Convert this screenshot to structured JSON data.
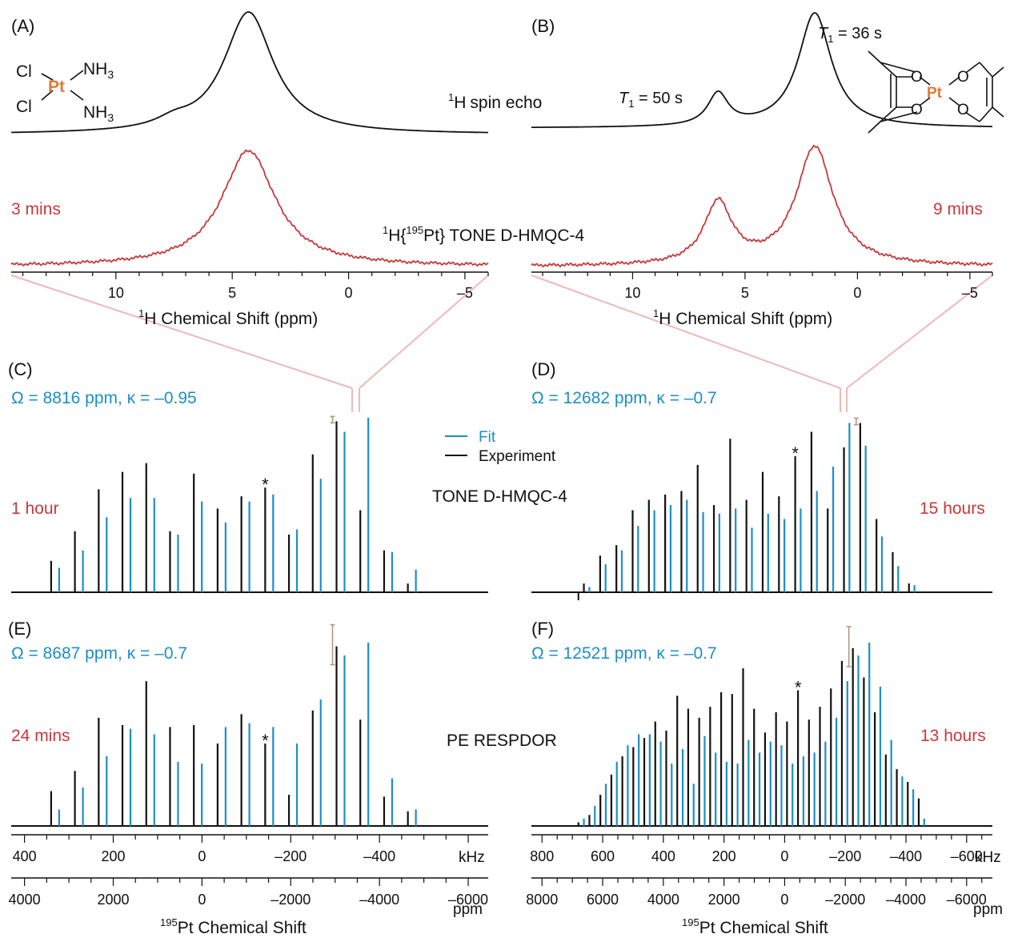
{
  "colors": {
    "experiment": "#111111",
    "fit": "#1b8fc8",
    "label_red": "#c8393b",
    "zoom": "#f0b8b8",
    "errbar": "#b09a80"
  },
  "labels": {
    "A": "(A)",
    "B": "(B)",
    "C": "(C)",
    "D": "(D)",
    "E": "(E)",
    "F": "(F)",
    "spin_echo": "spin echo",
    "spin_echo_sup": "1",
    "spin_echo_nuc": "H",
    "tone_1h_sup": "1",
    "tone_1h_pre": "H{",
    "tone_1h_sup2": "195",
    "tone_1h_post": "Pt} TONE D-HMQC-4",
    "time_A": "3 mins",
    "time_B": "9 mins",
    "time_C": "1 hour",
    "time_D": "15 hours",
    "time_E": "24 mins",
    "time_F": "13 hours",
    "t1_a_sym": "T",
    "t1_a_sub": "1",
    "t1_a_val": " = 50 s",
    "t1_b_sym": "T",
    "t1_b_sub": "1",
    "t1_b_val": " = 36 s",
    "omega_C": "Ω = 8816 ppm, κ =  –0.95",
    "omega_D": "Ω = 12682 ppm, κ = –0.7",
    "omega_E": "Ω = 8687 ppm, κ =  –0.7",
    "omega_F": "Ω = 12521 ppm, κ = –0.7",
    "legend_fit": "Fit",
    "legend_exp": "Experiment",
    "tone": "TONE D-HMQC-4",
    "respdor": "PE RESPDOR",
    "star": "*",
    "unit_khz": "kHz",
    "unit_ppm": "ppm",
    "h_axis_sup": "1",
    "h_axis": "H Chemical Shift (ppm)",
    "pt_axis_sup": "195",
    "pt_axis": "Pt Chemical Shift",
    "mol_a": {
      "cl1": "Cl",
      "cl2": "Cl",
      "pt": "Pt",
      "nh1": "NH",
      "nh2": "NH",
      "sub3": "3"
    },
    "mol_b": {
      "o1": "O",
      "o2": "O",
      "o3": "O",
      "o4": "O",
      "pt": "Pt"
    }
  },
  "chart_data": [
    {
      "panel": "A",
      "type": "line",
      "x_unit": "ppm",
      "xlim": [
        14.5,
        -6
      ],
      "xticks": [
        10,
        5,
        0,
        -5
      ],
      "xtick_labels": [
        "10",
        "5",
        "0",
        "–5"
      ],
      "series": [
        {
          "name": "spin echo",
          "peaks": [
            {
              "center": 4.3,
              "amp": 1.0,
              "width": 1.3
            },
            {
              "center": 7.5,
              "amp": 0.06,
              "width": 0.9
            }
          ]
        },
        {
          "name": "TONE D-HMQC-4",
          "peaks": [
            {
              "center": 4.3,
              "amp": 1.0,
              "width": 1.4
            }
          ]
        }
      ]
    },
    {
      "panel": "B",
      "type": "line",
      "x_unit": "ppm",
      "xlim": [
        14.5,
        -6
      ],
      "xticks": [
        10,
        5,
        0,
        -5
      ],
      "xtick_labels": [
        "10",
        "5",
        "0",
        "–5"
      ],
      "series": [
        {
          "name": "spin echo",
          "peaks": [
            {
              "center": 1.9,
              "amp": 1.0,
              "width": 0.9
            },
            {
              "center": 6.2,
              "amp": 0.28,
              "width": 0.55
            }
          ]
        },
        {
          "name": "TONE D-HMQC-4",
          "peaks": [
            {
              "center": 1.9,
              "amp": 1.0,
              "width": 1.0
            },
            {
              "center": 6.2,
              "amp": 0.52,
              "width": 0.75
            }
          ]
        }
      ]
    },
    {
      "panel": "C",
      "type": "bar",
      "x_unit": "kHz",
      "spacing": 53.6,
      "experiment": {
        "start": 340,
        "values": [
          0.18,
          0.35,
          0.59,
          0.69,
          0.74,
          0.35,
          0.68,
          0.48,
          0.55,
          0.6,
          0.33,
          0.79,
          0.98,
          0.47,
          0.24,
          0.05
        ]
      },
      "fit": {
        "start": 322,
        "values": [
          0.14,
          0.24,
          0.43,
          0.54,
          0.54,
          0.33,
          0.52,
          0.4,
          0.52,
          0.56,
          0.36,
          0.65,
          0.92,
          1.0,
          0.23,
          0.13
        ]
      },
      "star_index": 9,
      "error_index": 12,
      "xlim": [
        430,
        -645
      ],
      "xticks": [
        400,
        200,
        0,
        -200,
        -400,
        -600
      ],
      "xtick_labels": [
        "400",
        "200",
        "0",
        "–200",
        "–400",
        ""
      ],
      "ppm_ticks": [
        4000,
        2000,
        0,
        -2000,
        -4000,
        -6000
      ],
      "ppm_labels": [
        "4000",
        "2000",
        "0",
        "–2000",
        "–4000",
        "–6000"
      ]
    },
    {
      "panel": "D",
      "type": "bar",
      "x_unit": "kHz",
      "spacing": 53.6,
      "experiment": {
        "start": 662,
        "values": [
          0.05,
          0.21,
          0.27,
          0.47,
          0.53,
          0.56,
          0.58,
          0.73,
          0.5,
          0.88,
          0.53,
          0.69,
          0.55,
          0.78,
          0.92,
          0.48,
          0.83,
          0.97,
          0.42,
          0.23,
          0.05
        ]
      },
      "fit": {
        "start": 644,
        "values": [
          0.03,
          0.16,
          0.24,
          0.38,
          0.47,
          0.5,
          0.53,
          0.46,
          0.45,
          0.48,
          0.37,
          0.45,
          0.42,
          0.48,
          0.58,
          0.72,
          0.97,
          0.84,
          0.32,
          0.15,
          0.04
        ]
      },
      "star_index": 13,
      "error_index": 17,
      "xlim": [
        835,
        -685
      ],
      "xticks": [
        800,
        600,
        400,
        200,
        0,
        -200,
        -400,
        -600
      ],
      "xtick_labels": [
        "800",
        "600",
        "400",
        "200",
        "0",
        "–200",
        "–400",
        "–600"
      ],
      "ppm_ticks": [
        8000,
        6000,
        4000,
        2000,
        0,
        -2000,
        -4000,
        -6000
      ],
      "ppm_labels": [
        "8000",
        "6000",
        "4000",
        "2000",
        "0",
        "–2000",
        "–4000",
        "–6000"
      ]
    },
    {
      "panel": "E",
      "type": "bar",
      "x_unit": "kHz",
      "spacing": 53.6,
      "experiment": {
        "start": 340,
        "values": [
          0.19,
          0.3,
          0.59,
          0.55,
          0.79,
          0.54,
          0.55,
          0.45,
          0.61,
          0.45,
          0.17,
          0.63,
          0.98,
          0.58,
          0.16,
          0.08
        ]
      },
      "fit": {
        "start": 322,
        "values": [
          0.09,
          0.21,
          0.38,
          0.53,
          0.5,
          0.35,
          0.34,
          0.54,
          0.56,
          0.54,
          0.45,
          0.69,
          0.93,
          1.0,
          0.26,
          0.09
        ]
      },
      "star_index": 9,
      "error_index": 12,
      "xlim": [
        430,
        -645
      ],
      "xticks": [
        400,
        200,
        0,
        -200,
        -400,
        -600
      ],
      "xtick_labels": [
        "400",
        "200",
        "0",
        "–200",
        "–400",
        ""
      ],
      "ppm_ticks": [
        4000,
        2000,
        0,
        -2000,
        -4000,
        -6000
      ],
      "ppm_labels": [
        "4000",
        "2000",
        "0",
        "–2000",
        "–4000",
        "–6000"
      ]
    },
    {
      "panel": "F",
      "type": "bar",
      "x_unit": "kHz",
      "spacing": 36.2,
      "experiment": {
        "start": 680,
        "values": [
          0.02,
          0.06,
          0.17,
          0.28,
          0.38,
          0.43,
          0.48,
          0.57,
          0.52,
          0.71,
          0.64,
          0.59,
          0.65,
          0.73,
          0.72,
          0.86,
          0.64,
          0.51,
          0.62,
          0.57,
          0.74,
          0.58,
          0.65,
          0.75,
          0.9,
          0.97,
          0.81,
          0.62,
          0.39,
          0.31,
          0.24,
          0.15
        ]
      },
      "fit": {
        "start": 662,
        "values": [
          0.04,
          0.11,
          0.23,
          0.35,
          0.44,
          0.5,
          0.5,
          0.46,
          0.34,
          0.42,
          0.23,
          0.49,
          0.4,
          0.35,
          0.34,
          0.47,
          0.4,
          0.46,
          0.44,
          0.34,
          0.38,
          0.4,
          0.46,
          0.59,
          0.79,
          0.93,
          1.0,
          0.76,
          0.47,
          0.27,
          0.2,
          0.04
        ]
      },
      "star_index": 20,
      "error_index": 25,
      "xlim": [
        835,
        -685
      ],
      "xticks": [
        800,
        600,
        400,
        200,
        0,
        -200,
        -400,
        -600
      ],
      "xtick_labels": [
        "800",
        "600",
        "400",
        "200",
        "0",
        "–200",
        "–400",
        "–600"
      ],
      "ppm_ticks": [
        8000,
        6000,
        4000,
        2000,
        0,
        -2000,
        -4000,
        -6000
      ],
      "ppm_labels": [
        "8000",
        "6000",
        "4000",
        "2000",
        "0",
        "–2000",
        "–4000",
        "–6000"
      ]
    }
  ]
}
